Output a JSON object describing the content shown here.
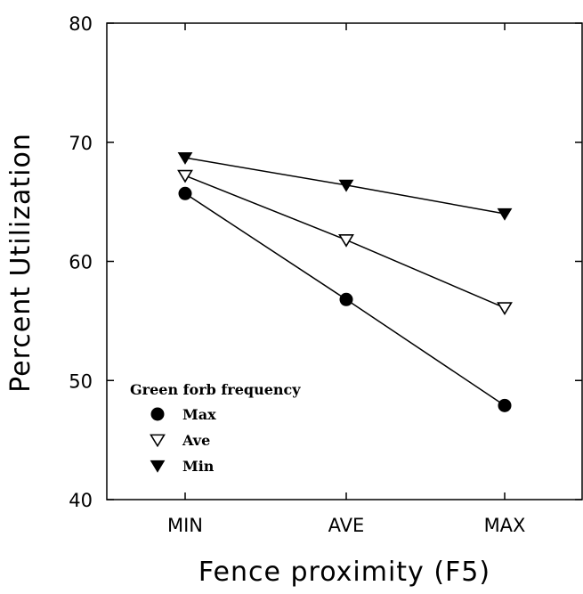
{
  "chart_data": {
    "type": "line",
    "xlabel": "Fence proximity (F5)",
    "ylabel": "Percent Utilization",
    "categories": [
      "MIN",
      "AVE",
      "MAX"
    ],
    "ylim": [
      40,
      80
    ],
    "yticks": [
      40,
      50,
      60,
      70,
      80
    ],
    "grid": false,
    "legend": {
      "title": "Green forb frequency",
      "placement": "bottom-left"
    },
    "series": [
      {
        "name": "Max",
        "marker": "filled-circle",
        "values": [
          65.7,
          56.8,
          47.9
        ]
      },
      {
        "name": "Ave",
        "marker": "open-triangle-down",
        "values": [
          67.2,
          61.8,
          56.1
        ]
      },
      {
        "name": "Min",
        "marker": "filled-triangle-down",
        "values": [
          68.7,
          66.4,
          64.0
        ]
      }
    ]
  }
}
